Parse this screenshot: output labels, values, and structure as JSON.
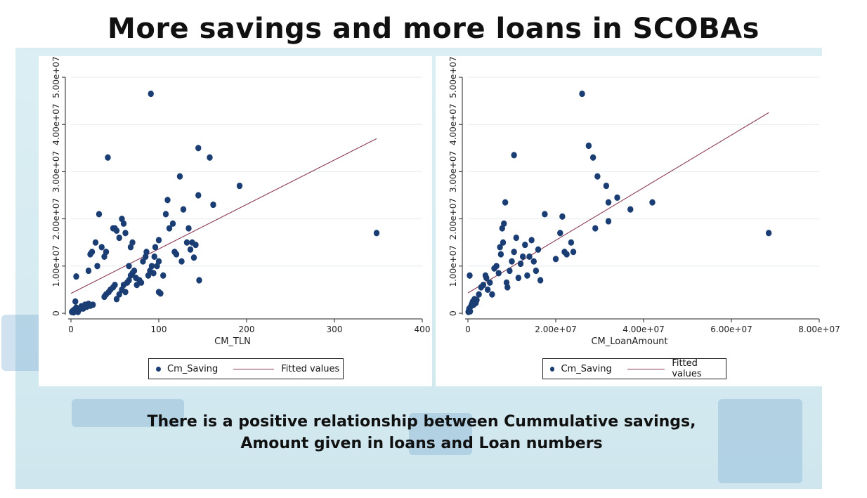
{
  "title": "More savings and more loans in SCOBAs",
  "caption": {
    "line1": "There is a positive relationship between Cummulative savings,",
    "line2": "Amount given in loans and Loan numbers"
  },
  "colors": {
    "point": "#1a3e73",
    "fit": "#8b3a55",
    "grid": "#e6ebee",
    "panel_bg": "#d8ecf2"
  },
  "chart_data": [
    {
      "type": "scatter",
      "xlabel": "CM_TLN",
      "ylabel": "",
      "xlim": [
        0,
        400
      ],
      "ylim": [
        0,
        50000000
      ],
      "xticks": [
        0,
        100,
        200,
        300,
        400
      ],
      "xtick_labels": [
        "0",
        "100",
        "200",
        "300",
        "400"
      ],
      "yticks": [
        0,
        10000000,
        20000000,
        30000000,
        40000000,
        50000000
      ],
      "ytick_labels": [
        "0",
        "1.00e+07",
        "2.00e+07",
        "3.00e+07",
        "4.00e+07",
        "5.00e+07"
      ],
      "grid": true,
      "legend_position": "bottom",
      "series": [
        {
          "name": "Cm_Saving",
          "type": "scatter",
          "points": [
            [
              1,
              300000
            ],
            [
              2,
              500000
            ],
            [
              3,
              200000
            ],
            [
              4,
              800000
            ],
            [
              5,
              400000
            ],
            [
              6,
              1200000
            ],
            [
              7,
              600000
            ],
            [
              8,
              300000
            ],
            [
              10,
              900000
            ],
            [
              12,
              1500000
            ],
            [
              14,
              1000000
            ],
            [
              16,
              1800000
            ],
            [
              18,
              1400000
            ],
            [
              20,
              2000000
            ],
            [
              22,
              1600000
            ],
            [
              25,
              1800000
            ],
            [
              5,
              2500000
            ],
            [
              6,
              7800000
            ],
            [
              20,
              9000000
            ],
            [
              22,
              12500000
            ],
            [
              24,
              13000000
            ],
            [
              28,
              15000000
            ],
            [
              30,
              10000000
            ],
            [
              32,
              21000000
            ],
            [
              35,
              14000000
            ],
            [
              38,
              12000000
            ],
            [
              40,
              13000000
            ],
            [
              42,
              33000000
            ],
            [
              38,
              3500000
            ],
            [
              40,
              4000000
            ],
            [
              43,
              4500000
            ],
            [
              45,
              5000000
            ],
            [
              48,
              5500000
            ],
            [
              50,
              6000000
            ],
            [
              52,
              3000000
            ],
            [
              55,
              4000000
            ],
            [
              58,
              5000000
            ],
            [
              60,
              6000000
            ],
            [
              62,
              4500000
            ],
            [
              64,
              6500000
            ],
            [
              66,
              7000000
            ],
            [
              68,
              8000000
            ],
            [
              70,
              8500000
            ],
            [
              72,
              9000000
            ],
            [
              74,
              7500000
            ],
            [
              48,
              18000000
            ],
            [
              50,
              18000000
            ],
            [
              52,
              17500000
            ],
            [
              55,
              16000000
            ],
            [
              58,
              20000000
            ],
            [
              60,
              19000000
            ],
            [
              62,
              17000000
            ],
            [
              66,
              10000000
            ],
            [
              68,
              14000000
            ],
            [
              70,
              15000000
            ],
            [
              75,
              6000000
            ],
            [
              78,
              7000000
            ],
            [
              80,
              6500000
            ],
            [
              82,
              11000000
            ],
            [
              85,
              12000000
            ],
            [
              86,
              13000000
            ],
            [
              88,
              8000000
            ],
            [
              90,
              9000000
            ],
            [
              92,
              10000000
            ],
            [
              94,
              8500000
            ],
            [
              95,
              12000000
            ],
            [
              96,
              14000000
            ],
            [
              98,
              10000000
            ],
            [
              100,
              11000000
            ],
            [
              100,
              4500000
            ],
            [
              102,
              4200000
            ],
            [
              100,
              15500000
            ],
            [
              105,
              8000000
            ],
            [
              91,
              46500000
            ],
            [
              108,
              21000000
            ],
            [
              110,
              24000000
            ],
            [
              112,
              18000000
            ],
            [
              116,
              19000000
            ],
            [
              118,
              13000000
            ],
            [
              120,
              12500000
            ],
            [
              124,
              29000000
            ],
            [
              126,
              11000000
            ],
            [
              128,
              22000000
            ],
            [
              132,
              15000000
            ],
            [
              134,
              18000000
            ],
            [
              136,
              13500000
            ],
            [
              138,
              15000000
            ],
            [
              140,
              11800000
            ],
            [
              142,
              14500000
            ],
            [
              145,
              25000000
            ],
            [
              145,
              35000000
            ],
            [
              146,
              7000000
            ],
            [
              158,
              33000000
            ],
            [
              162,
              23000000
            ],
            [
              192,
              27000000
            ],
            [
              348,
              17000000
            ]
          ]
        },
        {
          "name": "Fitted values",
          "type": "line",
          "x": [
            0,
            348
          ],
          "y": [
            4200000,
            37000000
          ]
        }
      ]
    },
    {
      "type": "scatter",
      "xlabel": "CM_LoanAmount",
      "ylabel": "",
      "xlim": [
        0,
        80000000
      ],
      "ylim": [
        0,
        50000000
      ],
      "xticks": [
        0,
        20000000,
        40000000,
        60000000,
        80000000
      ],
      "xtick_labels": [
        "0",
        "2.00e+07",
        "4.00e+07",
        "6.00e+07",
        "8.00e+07"
      ],
      "yticks": [
        0,
        10000000,
        20000000,
        30000000,
        40000000,
        50000000
      ],
      "ytick_labels": [
        "0",
        "1.00e+07",
        "2.00e+07",
        "3.00e+07",
        "4.00e+07",
        "5.00e+07"
      ],
      "grid": true,
      "legend_position": "bottom",
      "series": [
        {
          "name": "Cm_Saving",
          "type": "scatter",
          "points": [
            [
              100000,
              300000
            ],
            [
              200000,
              600000
            ],
            [
              300000,
              1000000
            ],
            [
              500000,
              400000
            ],
            [
              700000,
              1500000
            ],
            [
              900000,
              2000000
            ],
            [
              1100000,
              2500000
            ],
            [
              1300000,
              1800000
            ],
            [
              1500000,
              3000000
            ],
            [
              1800000,
              2200000
            ],
            [
              2000000,
              2800000
            ],
            [
              400000,
              8000000
            ],
            [
              2500000,
              4000000
            ],
            [
              3000000,
              5500000
            ],
            [
              3500000,
              6000000
            ],
            [
              4000000,
              8000000
            ],
            [
              4200000,
              7500000
            ],
            [
              4500000,
              5000000
            ],
            [
              5000000,
              6500000
            ],
            [
              5500000,
              4000000
            ],
            [
              6000000,
              9500000
            ],
            [
              6500000,
              10000000
            ],
            [
              7000000,
              8500000
            ],
            [
              7300000,
              14000000
            ],
            [
              7500000,
              12500000
            ],
            [
              7800000,
              18000000
            ],
            [
              8000000,
              15000000
            ],
            [
              8200000,
              19000000
            ],
            [
              8500000,
              23500000
            ],
            [
              8800000,
              6500000
            ],
            [
              9000000,
              5500000
            ],
            [
              9500000,
              9000000
            ],
            [
              10000000,
              11000000
            ],
            [
              10500000,
              13000000
            ],
            [
              11000000,
              16000000
            ],
            [
              11500000,
              7500000
            ],
            [
              12000000,
              10500000
            ],
            [
              12500000,
              12000000
            ],
            [
              13000000,
              14500000
            ],
            [
              13500000,
              8000000
            ],
            [
              14000000,
              12000000
            ],
            [
              14500000,
              15500000
            ],
            [
              15000000,
              11000000
            ],
            [
              15500000,
              9000000
            ],
            [
              16000000,
              13500000
            ],
            [
              16500000,
              7000000
            ],
            [
              10500000,
              33500000
            ],
            [
              17500000,
              21000000
            ],
            [
              20000000,
              11500000
            ],
            [
              21000000,
              17000000
            ],
            [
              21500000,
              20500000
            ],
            [
              22000000,
              13000000
            ],
            [
              22500000,
              12500000
            ],
            [
              23500000,
              15000000
            ],
            [
              24000000,
              13000000
            ],
            [
              26000000,
              46500000
            ],
            [
              27500000,
              35500000
            ],
            [
              28500000,
              33000000
            ],
            [
              29000000,
              18000000
            ],
            [
              29500000,
              29000000
            ],
            [
              31500000,
              27000000
            ],
            [
              32000000,
              19500000
            ],
            [
              32000000,
              23500000
            ],
            [
              34000000,
              24500000
            ],
            [
              37000000,
              22000000
            ],
            [
              42000000,
              23500000
            ],
            [
              68500000,
              17000000
            ]
          ]
        },
        {
          "name": "Fitted values",
          "type": "line",
          "x": [
            0,
            68500000
          ],
          "y": [
            4300000,
            42500000
          ]
        }
      ]
    }
  ]
}
